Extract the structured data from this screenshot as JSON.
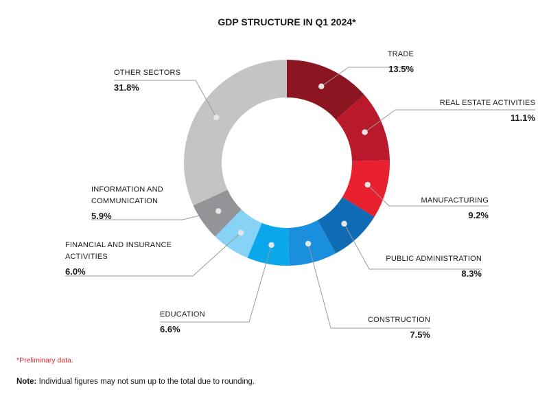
{
  "chart_data": {
    "type": "pie",
    "title": "GDP STRUCTURE IN Q1 2024*",
    "donut": true,
    "slices": [
      {
        "name": "TRADE",
        "label_lines": [
          "TRADE"
        ],
        "value_text": "13.5%",
        "value": 13.5,
        "color": "#8b1520"
      },
      {
        "name": "REAL ESTATE ACTIVITIES",
        "label_lines": [
          "REAL ESTATE ACTIVITIES"
        ],
        "value_text": "11.1%",
        "value": 11.1,
        "color": "#b8192b"
      },
      {
        "name": "MANUFACTURING",
        "label_lines": [
          "MANUFACTURING"
        ],
        "value_text": "9.2%",
        "value": 9.2,
        "color": "#e8202f"
      },
      {
        "name": "PUBLIC ADMINISTRATION",
        "label_lines": [
          "PUBLIC ADMINISTRATION"
        ],
        "value_text": "8.3%",
        "value": 8.3,
        "color": "#0f6bb4"
      },
      {
        "name": "CONSTRUCTION",
        "label_lines": [
          "CONSTRUCTION"
        ],
        "value_text": "7.5%",
        "value": 7.5,
        "color": "#1a8fde"
      },
      {
        "name": "EDUCATION",
        "label_lines": [
          "EDUCATION"
        ],
        "value_text": "6.6%",
        "value": 6.6,
        "color": "#0aa7ea"
      },
      {
        "name": "FINANCIAL AND INSURANCE ACTIVITIES",
        "label_lines": [
          "FINANCIAL AND INSURANCE",
          "ACTIVITIES"
        ],
        "value_text": "6.0%",
        "value": 6.0,
        "color": "#86d3f6"
      },
      {
        "name": "INFORMATION AND COMMUNICATION",
        "label_lines": [
          "INFORMATION AND",
          "COMMUNICATION"
        ],
        "value_text": "5.9%",
        "value": 5.9,
        "color": "#929497"
      },
      {
        "name": "OTHER SECTORS",
        "label_lines": [
          "OTHER SECTORS"
        ],
        "value_text": "31.8%",
        "value": 31.8,
        "color": "#c3c4c6"
      }
    ]
  },
  "footnote": "*Preliminary data.",
  "note": {
    "prefix": "Note:",
    "text": " Individual figures may not sum up to the total due to rounding."
  }
}
